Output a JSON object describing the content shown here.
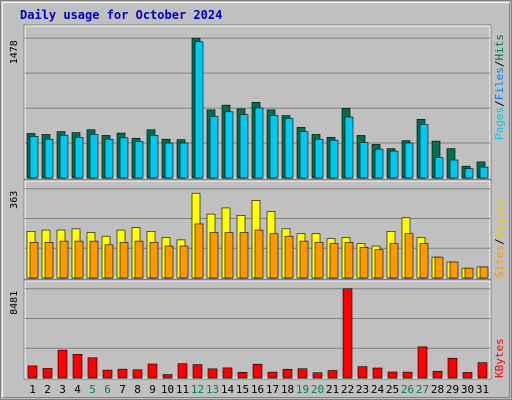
{
  "title": "Daily usage for October 2024",
  "colors": {
    "background": "#c0c0c0",
    "plot_background": "#c0c0c0",
    "hits": "#007050",
    "files": "#00c8f0",
    "pages": "#00c8f0",
    "visits": "#ffff00",
    "sites": "#ff9900",
    "kbytes": "#ff0000",
    "title": "#0000c0",
    "weekend_day": "#00805c"
  },
  "chart_data": [
    {
      "type": "bar",
      "panel": "hits",
      "y_label_max": "1478",
      "ylim": [
        0,
        1478
      ],
      "categories": [
        "1",
        "2",
        "3",
        "4",
        "5",
        "6",
        "7",
        "8",
        "9",
        "10",
        "11",
        "12",
        "13",
        "14",
        "15",
        "16",
        "17",
        "18",
        "19",
        "20",
        "21",
        "22",
        "23",
        "24",
        "25",
        "26",
        "27",
        "28",
        "29",
        "30",
        "31"
      ],
      "weekend_days": [
        "5",
        "6",
        "12",
        "13",
        "19",
        "20",
        "26",
        "27"
      ],
      "legend": [
        "Pages",
        "Files",
        "Hits"
      ],
      "series": [
        {
          "name": "Hits",
          "values": [
            470,
            460,
            490,
            480,
            510,
            450,
            475,
            420,
            510,
            410,
            405,
            1478,
            720,
            770,
            730,
            800,
            720,
            660,
            535,
            460,
            430,
            735,
            450,
            355,
            310,
            395,
            620,
            390,
            310,
            125,
            170
          ]
        },
        {
          "name": "Files",
          "values": [
            440,
            410,
            450,
            430,
            460,
            410,
            425,
            385,
            450,
            370,
            370,
            1440,
            650,
            700,
            670,
            740,
            660,
            630,
            490,
            410,
            400,
            645,
            375,
            305,
            285,
            370,
            565,
            215,
            190,
            100,
            115
          ]
        }
      ]
    },
    {
      "type": "bar",
      "panel": "visits",
      "y_label_max": "363",
      "ylim": [
        0,
        363
      ],
      "categories": [
        "1",
        "2",
        "3",
        "4",
        "5",
        "6",
        "7",
        "8",
        "9",
        "10",
        "11",
        "12",
        "13",
        "14",
        "15",
        "16",
        "17",
        "18",
        "19",
        "20",
        "21",
        "22",
        "23",
        "24",
        "25",
        "26",
        "27",
        "28",
        "29",
        "30",
        "31"
      ],
      "legend": [
        "Sites",
        "Visits"
      ],
      "series": [
        {
          "name": "Visits",
          "values": [
            190,
            195,
            195,
            200,
            185,
            170,
            195,
            205,
            190,
            165,
            155,
            345,
            260,
            285,
            255,
            315,
            270,
            200,
            180,
            180,
            160,
            165,
            140,
            130,
            190,
            245,
            165,
            85,
            65,
            40,
            45
          ]
        },
        {
          "name": "Sites",
          "values": [
            145,
            145,
            150,
            150,
            150,
            135,
            145,
            150,
            145,
            130,
            130,
            220,
            185,
            185,
            185,
            195,
            180,
            170,
            150,
            145,
            140,
            145,
            125,
            115,
            140,
            180,
            140,
            85,
            65,
            40,
            45
          ]
        }
      ]
    },
    {
      "type": "bar",
      "panel": "kbytes",
      "y_label_max": "8481",
      "ylim": [
        0,
        8481
      ],
      "categories": [
        "1",
        "2",
        "3",
        "4",
        "5",
        "6",
        "7",
        "8",
        "9",
        "10",
        "11",
        "12",
        "13",
        "14",
        "15",
        "16",
        "17",
        "18",
        "19",
        "20",
        "21",
        "22",
        "23",
        "24",
        "25",
        "26",
        "27",
        "28",
        "29",
        "30",
        "31"
      ],
      "legend": [
        "KBytes"
      ],
      "series": [
        {
          "name": "KBytes",
          "values": [
            1150,
            910,
            2650,
            2250,
            1920,
            750,
            840,
            780,
            1330,
            330,
            1360,
            1270,
            870,
            960,
            540,
            1310,
            560,
            830,
            880,
            500,
            710,
            8481,
            1080,
            950,
            570,
            560,
            2960,
            640,
            1880,
            530,
            1460
          ]
        }
      ]
    }
  ]
}
